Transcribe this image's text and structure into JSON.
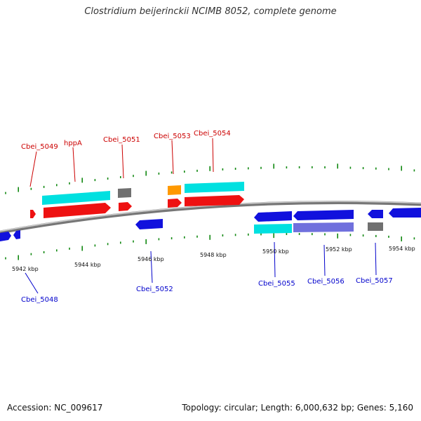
{
  "title": "Clostridium beijerinckii NCIMB 8052, complete genome",
  "footer": {
    "accession": "Accession: NC_009617",
    "summary": "Topology: circular; Length: 6,000,632 bp; Genes: 5,160"
  },
  "colors": {
    "forward_cds": "#ee1111",
    "reverse_cds": "#1111dd",
    "forward_gene": "#00dddd",
    "reverse_misc": "#7070dd",
    "pseudo": "#707070",
    "rna": "#ff9900",
    "backbone": "#999999",
    "tick": "#118811",
    "label_top": "#cc0000",
    "label_bottom": "#0000cc"
  },
  "scale": {
    "unit": "kbp",
    "labels": [
      "5942 kbp",
      "5944 kbp",
      "5946 kbp",
      "5948 kbp",
      "5950 kbp",
      "5952 kbp",
      "5954 kbp"
    ]
  },
  "gene_labels": {
    "top": [
      "Cbei_5049",
      "hppA",
      "Cbei_5051",
      "Cbei_5053",
      "Cbei_5054"
    ],
    "bottom": [
      "Cbei_5048",
      "Cbei_5052",
      "Cbei_5055",
      "Cbei_5056",
      "Cbei_5057"
    ]
  }
}
